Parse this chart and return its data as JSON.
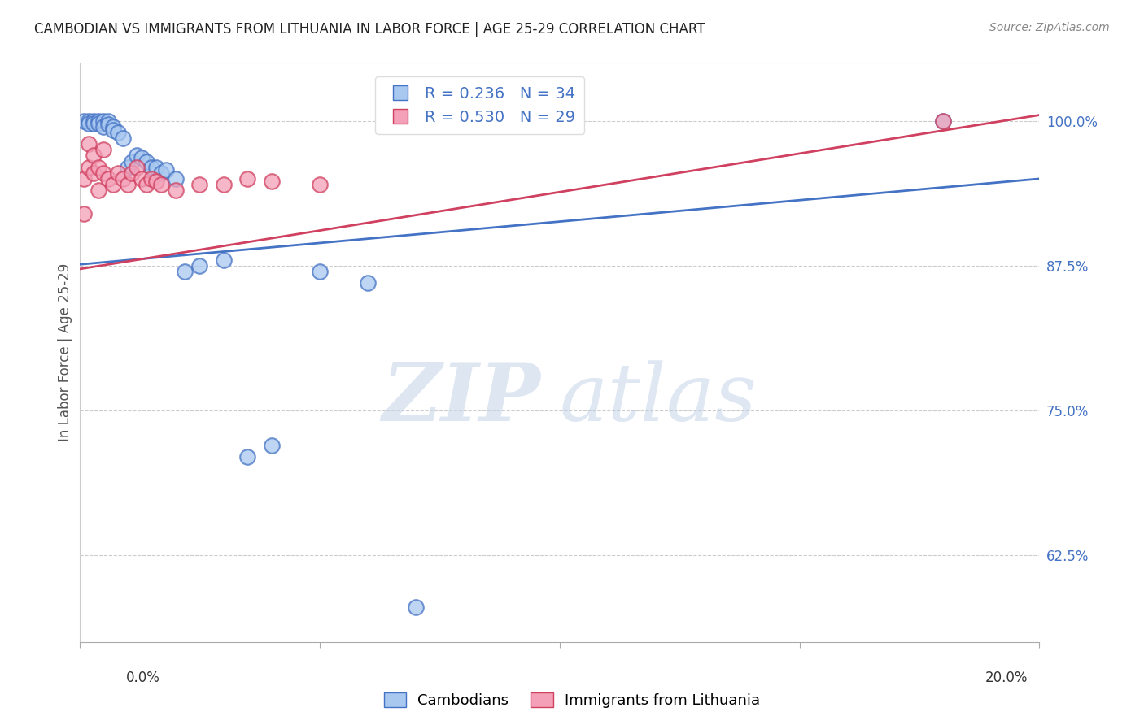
{
  "title": "CAMBODIAN VS IMMIGRANTS FROM LITHUANIA IN LABOR FORCE | AGE 25-29 CORRELATION CHART",
  "source": "Source: ZipAtlas.com",
  "ylabel": "In Labor Force | Age 25-29",
  "ylabel_right_ticks": [
    0.625,
    0.75,
    0.875,
    1.0
  ],
  "ylabel_right_labels": [
    "62.5%",
    "75.0%",
    "87.5%",
    "100.0%"
  ],
  "xlim": [
    0.0,
    0.2
  ],
  "ylim": [
    0.55,
    1.05
  ],
  "cambodian_R": 0.236,
  "cambodian_N": 34,
  "lithuania_R": 0.53,
  "lithuania_N": 29,
  "cambodian_color": "#a8c8f0",
  "lithuania_color": "#f4a0b8",
  "cambodian_color_line": "#4472C4",
  "lithuania_color_line": "#d04060",
  "legend_label_cambodian": "Cambodians",
  "legend_label_lithuania": "Immigrants from Lithuania",
  "cambodian_x": [
    0.001,
    0.002,
    0.002,
    0.003,
    0.003,
    0.004,
    0.004,
    0.005,
    0.005,
    0.006,
    0.006,
    0.007,
    0.007,
    0.008,
    0.009,
    0.01,
    0.011,
    0.012,
    0.013,
    0.014,
    0.015,
    0.016,
    0.017,
    0.018,
    0.02,
    0.022,
    0.025,
    0.03,
    0.035,
    0.04,
    0.05,
    0.06,
    0.07,
    0.18
  ],
  "cambodian_y": [
    1.0,
    1.0,
    0.998,
    1.0,
    0.998,
    1.0,
    0.998,
    1.0,
    0.995,
    1.0,
    0.997,
    0.995,
    0.992,
    0.99,
    0.985,
    0.96,
    0.965,
    0.97,
    0.968,
    0.965,
    0.96,
    0.96,
    0.955,
    0.958,
    0.95,
    0.87,
    0.875,
    0.88,
    0.71,
    0.72,
    0.87,
    0.86,
    0.58,
    1.0
  ],
  "lithuania_x": [
    0.001,
    0.001,
    0.002,
    0.002,
    0.003,
    0.003,
    0.004,
    0.004,
    0.005,
    0.005,
    0.006,
    0.007,
    0.008,
    0.009,
    0.01,
    0.011,
    0.012,
    0.013,
    0.014,
    0.015,
    0.016,
    0.017,
    0.02,
    0.025,
    0.03,
    0.035,
    0.04,
    0.05,
    0.18
  ],
  "lithuania_y": [
    0.95,
    0.92,
    0.98,
    0.96,
    0.97,
    0.955,
    0.96,
    0.94,
    0.975,
    0.955,
    0.95,
    0.945,
    0.955,
    0.95,
    0.945,
    0.955,
    0.96,
    0.95,
    0.945,
    0.95,
    0.948,
    0.945,
    0.94,
    0.945,
    0.945,
    0.95,
    0.948,
    0.945,
    1.0
  ],
  "watermark_zip": "ZIP",
  "watermark_atlas": "atlas",
  "background_color": "#ffffff",
  "grid_color": "#cccccc",
  "title_color": "#222222",
  "axis_label_color": "#555555",
  "right_tick_color": "#4472C4",
  "source_color": "#888888"
}
